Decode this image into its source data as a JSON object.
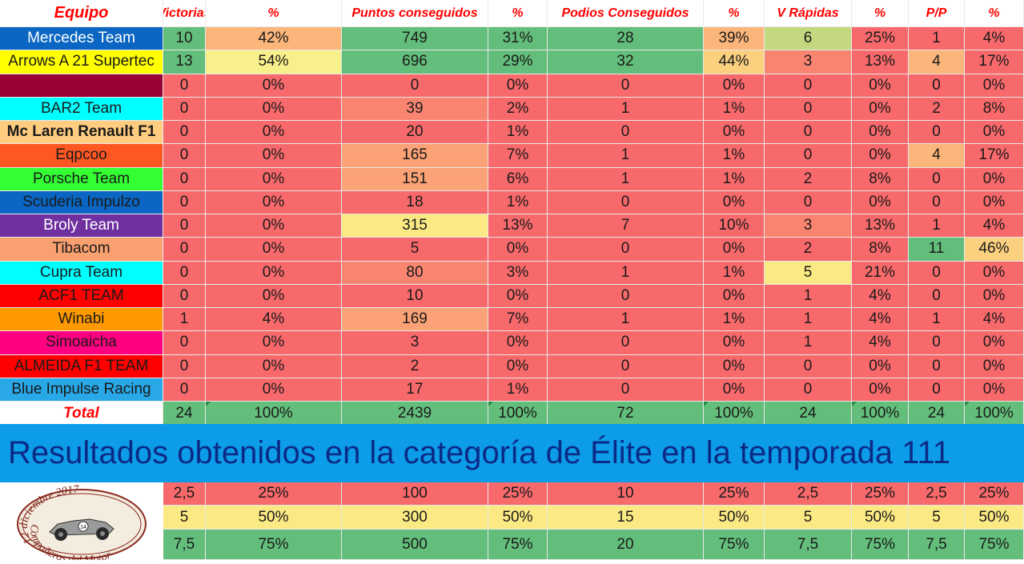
{
  "colors": {
    "red": "#f8696b",
    "green": "#63be7b",
    "yellow": "#fbe983",
    "orange_light": "#fcb57a",
    "orange": "#fba276",
    "salmon": "#f98570",
    "green_yellow": "#c4d97f",
    "header_text": "#ff0000",
    "banner_bg": "#0c9ce8",
    "banner_text": "#0b2a86"
  },
  "headers": [
    "Equipo",
    "Victorias",
    "%",
    "Puntos conseguidos",
    "%",
    "Podios Conseguidos",
    "%",
    "V Rápidas",
    "%",
    "P/P",
    "%"
  ],
  "rows": [
    {
      "team": {
        "name": "Mercedes Team",
        "bg": "#0a66c2",
        "color": "#ffffff",
        "bold": false
      },
      "cells": [
        [
          "10",
          "#63be7b"
        ],
        [
          "42%",
          "#fcb57a"
        ],
        [
          "749",
          "#63be7b"
        ],
        [
          "31%",
          "#63be7b"
        ],
        [
          "28",
          "#63be7b"
        ],
        [
          "39%",
          "#fcb57a"
        ],
        [
          "6",
          "#c4d97f"
        ],
        [
          "25%",
          "#f8696b"
        ],
        [
          "1",
          "#f8696b"
        ],
        [
          "4%",
          "#f8696b"
        ]
      ]
    },
    {
      "team": {
        "name": "Arrows A 21 Supertec",
        "bg": "#ffff00",
        "color": "#1a1a1a",
        "bold": false
      },
      "cells": [
        [
          "13",
          "#63be7b"
        ],
        [
          "54%",
          "#f8f08a"
        ],
        [
          "696",
          "#63be7b"
        ],
        [
          "29%",
          "#63be7b"
        ],
        [
          "32",
          "#63be7b"
        ],
        [
          "44%",
          "#fbd07f"
        ],
        [
          "3",
          "#f98570"
        ],
        [
          "13%",
          "#f8696b"
        ],
        [
          "4",
          "#fcb57a"
        ],
        [
          "17%",
          "#f8696b"
        ]
      ]
    },
    {
      "team": {
        "name": "",
        "bg": "#990033",
        "color": "#ffffff",
        "bold": false
      },
      "cells": [
        [
          "0",
          "#f8696b"
        ],
        [
          "0%",
          "#f8696b"
        ],
        [
          "0",
          "#f8696b"
        ],
        [
          "0%",
          "#f8696b"
        ],
        [
          "0",
          "#f8696b"
        ],
        [
          "0%",
          "#f8696b"
        ],
        [
          "0",
          "#f8696b"
        ],
        [
          "0%",
          "#f8696b"
        ],
        [
          "0",
          "#f8696b"
        ],
        [
          "0%",
          "#f8696b"
        ]
      ]
    },
    {
      "team": {
        "name": "BAR2 Team",
        "bg": "#00ffff",
        "color": "#1a1a1a",
        "bold": false
      },
      "cells": [
        [
          "0",
          "#f8696b"
        ],
        [
          "0%",
          "#f8696b"
        ],
        [
          "39",
          "#f98570"
        ],
        [
          "2%",
          "#f8696b"
        ],
        [
          "1",
          "#f8696b"
        ],
        [
          "1%",
          "#f8696b"
        ],
        [
          "0",
          "#f8696b"
        ],
        [
          "0%",
          "#f8696b"
        ],
        [
          "2",
          "#f8696b"
        ],
        [
          "8%",
          "#f8696b"
        ]
      ]
    },
    {
      "team": {
        "name": "Mc Laren Renault F1",
        "bg": "#ffcc80",
        "color": "#1a1a1a",
        "bold": true
      },
      "cells": [
        [
          "0",
          "#f8696b"
        ],
        [
          "0%",
          "#f8696b"
        ],
        [
          "20",
          "#f8696b"
        ],
        [
          "1%",
          "#f8696b"
        ],
        [
          "0",
          "#f8696b"
        ],
        [
          "0%",
          "#f8696b"
        ],
        [
          "0",
          "#f8696b"
        ],
        [
          "0%",
          "#f8696b"
        ],
        [
          "0",
          "#f8696b"
        ],
        [
          "0%",
          "#f8696b"
        ]
      ]
    },
    {
      "team": {
        "name": "Eqpcoo",
        "bg": "#ff5722",
        "color": "#1a1a1a",
        "bold": false
      },
      "cells": [
        [
          "0",
          "#f8696b"
        ],
        [
          "0%",
          "#f8696b"
        ],
        [
          "165",
          "#fba276"
        ],
        [
          "7%",
          "#f8696b"
        ],
        [
          "1",
          "#f8696b"
        ],
        [
          "1%",
          "#f8696b"
        ],
        [
          "0",
          "#f8696b"
        ],
        [
          "0%",
          "#f8696b"
        ],
        [
          "4",
          "#fcb57a"
        ],
        [
          "17%",
          "#f8696b"
        ]
      ]
    },
    {
      "team": {
        "name": "Porsche Team",
        "bg": "#33ff33",
        "color": "#1a1a1a",
        "bold": false
      },
      "cells": [
        [
          "0",
          "#f8696b"
        ],
        [
          "0%",
          "#f8696b"
        ],
        [
          "151",
          "#fba276"
        ],
        [
          "6%",
          "#f8696b"
        ],
        [
          "1",
          "#f8696b"
        ],
        [
          "1%",
          "#f8696b"
        ],
        [
          "2",
          "#f8696b"
        ],
        [
          "8%",
          "#f8696b"
        ],
        [
          "0",
          "#f8696b"
        ],
        [
          "0%",
          "#f8696b"
        ]
      ]
    },
    {
      "team": {
        "name": "Scuderia Impulzo",
        "bg": "#0a66c2",
        "color": "#1a1a1a",
        "bold": false
      },
      "cells": [
        [
          "0",
          "#f8696b"
        ],
        [
          "0%",
          "#f8696b"
        ],
        [
          "18",
          "#f8696b"
        ],
        [
          "1%",
          "#f8696b"
        ],
        [
          "0",
          "#f8696b"
        ],
        [
          "0%",
          "#f8696b"
        ],
        [
          "0",
          "#f8696b"
        ],
        [
          "0%",
          "#f8696b"
        ],
        [
          "0",
          "#f8696b"
        ],
        [
          "0%",
          "#f8696b"
        ]
      ]
    },
    {
      "team": {
        "name": "Broly Team",
        "bg": "#7030a0",
        "color": "#ffffff",
        "bold": false
      },
      "cells": [
        [
          "0",
          "#f8696b"
        ],
        [
          "0%",
          "#f8696b"
        ],
        [
          "315",
          "#fbe983"
        ],
        [
          "13%",
          "#f8696b"
        ],
        [
          "7",
          "#f8696b"
        ],
        [
          "10%",
          "#f8696b"
        ],
        [
          "3",
          "#f98570"
        ],
        [
          "13%",
          "#f8696b"
        ],
        [
          "1",
          "#f8696b"
        ],
        [
          "4%",
          "#f8696b"
        ]
      ]
    },
    {
      "team": {
        "name": "Tibacom",
        "bg": "#f8a070",
        "color": "#1a1a1a",
        "bold": false
      },
      "cells": [
        [
          "0",
          "#f8696b"
        ],
        [
          "0%",
          "#f8696b"
        ],
        [
          "5",
          "#f8696b"
        ],
        [
          "0%",
          "#f8696b"
        ],
        [
          "0",
          "#f8696b"
        ],
        [
          "0%",
          "#f8696b"
        ],
        [
          "2",
          "#f8696b"
        ],
        [
          "8%",
          "#f8696b"
        ],
        [
          "11",
          "#63be7b"
        ],
        [
          "46%",
          "#fbd07f"
        ]
      ]
    },
    {
      "team": {
        "name": "Cupra Team",
        "bg": "#00ffff",
        "color": "#1a1a1a",
        "bold": false
      },
      "cells": [
        [
          "0",
          "#f8696b"
        ],
        [
          "0%",
          "#f8696b"
        ],
        [
          "80",
          "#f98570"
        ],
        [
          "3%",
          "#f8696b"
        ],
        [
          "1",
          "#f8696b"
        ],
        [
          "1%",
          "#f8696b"
        ],
        [
          "5",
          "#fbe983"
        ],
        [
          "21%",
          "#f8696b"
        ],
        [
          "0",
          "#f8696b"
        ],
        [
          "0%",
          "#f8696b"
        ]
      ]
    },
    {
      "team": {
        "name": "ACF1 TEAM",
        "bg": "#ff0000",
        "color": "#1a1a1a",
        "bold": false
      },
      "cells": [
        [
          "0",
          "#f8696b"
        ],
        [
          "0%",
          "#f8696b"
        ],
        [
          "10",
          "#f8696b"
        ],
        [
          "0%",
          "#f8696b"
        ],
        [
          "0",
          "#f8696b"
        ],
        [
          "0%",
          "#f8696b"
        ],
        [
          "1",
          "#f8696b"
        ],
        [
          "4%",
          "#f8696b"
        ],
        [
          "0",
          "#f8696b"
        ],
        [
          "0%",
          "#f8696b"
        ]
      ]
    },
    {
      "team": {
        "name": "Winabi",
        "bg": "#ff9900",
        "color": "#1a1a1a",
        "bold": false
      },
      "cells": [
        [
          "1",
          "#f8696b"
        ],
        [
          "4%",
          "#f8696b"
        ],
        [
          "169",
          "#fba276"
        ],
        [
          "7%",
          "#f8696b"
        ],
        [
          "1",
          "#f8696b"
        ],
        [
          "1%",
          "#f8696b"
        ],
        [
          "1",
          "#f8696b"
        ],
        [
          "4%",
          "#f8696b"
        ],
        [
          "1",
          "#f8696b"
        ],
        [
          "4%",
          "#f8696b"
        ]
      ]
    },
    {
      "team": {
        "name": "Simoaicha",
        "bg": "#ff0080",
        "color": "#1a1a1a",
        "bold": false
      },
      "cells": [
        [
          "0",
          "#f8696b"
        ],
        [
          "0%",
          "#f8696b"
        ],
        [
          "3",
          "#f8696b"
        ],
        [
          "0%",
          "#f8696b"
        ],
        [
          "0",
          "#f8696b"
        ],
        [
          "0%",
          "#f8696b"
        ],
        [
          "1",
          "#f8696b"
        ],
        [
          "4%",
          "#f8696b"
        ],
        [
          "0",
          "#f8696b"
        ],
        [
          "0%",
          "#f8696b"
        ]
      ]
    },
    {
      "team": {
        "name": "ALMEIDA F1 TEAM",
        "bg": "#ff0000",
        "color": "#1a1a1a",
        "bold": false
      },
      "cells": [
        [
          "0",
          "#f8696b"
        ],
        [
          "0%",
          "#f8696b"
        ],
        [
          "2",
          "#f8696b"
        ],
        [
          "0%",
          "#f8696b"
        ],
        [
          "0",
          "#f8696b"
        ],
        [
          "0%",
          "#f8696b"
        ],
        [
          "0",
          "#f8696b"
        ],
        [
          "0%",
          "#f8696b"
        ],
        [
          "0",
          "#f8696b"
        ],
        [
          "0%",
          "#f8696b"
        ]
      ]
    },
    {
      "team": {
        "name": "Blue Impulse Racing",
        "bg": "#29a8e8",
        "color": "#1a1a1a",
        "bold": false
      },
      "cells": [
        [
          "0",
          "#f8696b"
        ],
        [
          "0%",
          "#f8696b"
        ],
        [
          "17",
          "#f8696b"
        ],
        [
          "1%",
          "#f8696b"
        ],
        [
          "0",
          "#f8696b"
        ],
        [
          "0%",
          "#f8696b"
        ],
        [
          "0",
          "#f8696b"
        ],
        [
          "0%",
          "#f8696b"
        ],
        [
          "0",
          "#f8696b"
        ],
        [
          "0%",
          "#f8696b"
        ]
      ]
    }
  ],
  "total": {
    "label": "Total",
    "values": [
      "24",
      "100%",
      "2439",
      "100%",
      "72",
      "100%",
      "24",
      "100%",
      "24",
      "100%"
    ]
  },
  "banner": "Resultados obtenidos en la categoría de Élite en la temporada 111",
  "thresholds": [
    {
      "bg": "#f8696b",
      "values": [
        "2,5",
        "25%",
        "100",
        "25%",
        "10",
        "25%",
        "2,5",
        "25%",
        "2,5",
        "25%"
      ]
    },
    {
      "bg": "#fbe983",
      "values": [
        "5",
        "50%",
        "300",
        "50%",
        "15",
        "50%",
        "5",
        "50%",
        "5",
        "50%"
      ]
    },
    {
      "bg": "#63be7b",
      "values": [
        "7,5",
        "75%",
        "500",
        "75%",
        "20",
        "75%",
        "7,5",
        "75%",
        "7,5",
        "75%"
      ]
    }
  ],
  "stamp": {
    "top_text": "12 diciembre 2017",
    "bottom_text": "Compañeros del Motor",
    "car_number": "14"
  }
}
